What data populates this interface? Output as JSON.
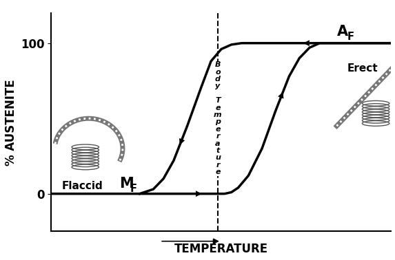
{
  "chart_data": {
    "type": "line",
    "xlabel": "TEMPERATURE",
    "ylabel": "% AUSTENITE",
    "xlim": [
      0,
      100
    ],
    "ylim": [
      -25,
      120
    ],
    "yticks": [
      0,
      100
    ],
    "tick_labels": "y",
    "series": [
      {
        "color": "#000000",
        "x": [
          0,
          51,
          53,
          55,
          58,
          62,
          66,
          70,
          73,
          76,
          79,
          100
        ],
        "values": [
          0,
          0,
          1,
          4,
          12,
          30,
          55,
          78,
          90,
          97,
          100,
          100
        ]
      },
      {
        "color": "#000000",
        "x": [
          100,
          56,
          53,
          50,
          47,
          44,
          40,
          36,
          33,
          30,
          26
        ],
        "values": [
          100,
          100,
          99,
          96,
          88,
          70,
          45,
          22,
          10,
          3,
          0
        ]
      }
    ],
    "reference_line": {
      "label": "Body Temperature",
      "x": 49
    },
    "annotations": {
      "af": {
        "text": "A",
        "subscript": "F"
      },
      "mf": {
        "text": "M",
        "subscript": "F"
      },
      "flaccid": "Flaccid",
      "erect": "Erect"
    }
  }
}
